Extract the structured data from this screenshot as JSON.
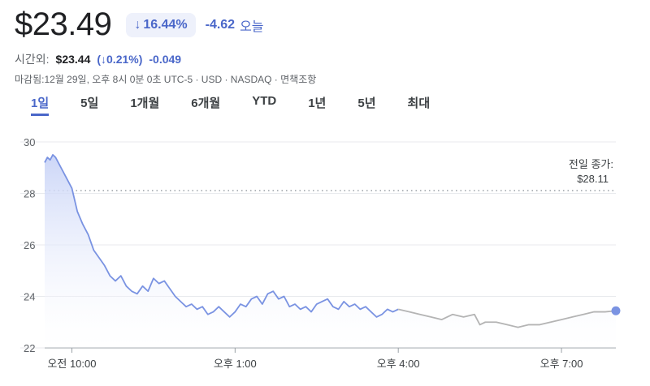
{
  "header": {
    "price": "$23.49",
    "change_pct": "16.44%",
    "change_abs": "-4.62",
    "change_label": "오늘"
  },
  "after_hours": {
    "label": "시간외:",
    "price": "$23.44",
    "pct": "(↓0.21%)",
    "abs": "-0.049"
  },
  "market_note": "마감됨:12월 29일, 오후 8시 0분 0초 UTC-5 · USD · NASDAQ · 면책조항",
  "tabs": [
    {
      "label": "1일",
      "active": true
    },
    {
      "label": "5일",
      "active": false
    },
    {
      "label": "1개월",
      "active": false
    },
    {
      "label": "6개월",
      "active": false
    },
    {
      "label": "YTD",
      "active": false
    },
    {
      "label": "1년",
      "active": false
    },
    {
      "label": "5년",
      "active": false
    },
    {
      "label": "최대",
      "active": false
    }
  ],
  "colors": {
    "regular": "#7a93e2",
    "afterhours": "#b4b4b4",
    "fill_top": "#c9d4f7",
    "accent": "#4a67c9"
  },
  "chart_data": {
    "type": "line",
    "ylim": [
      22,
      30
    ],
    "yticks": [
      22,
      24,
      26,
      28,
      30
    ],
    "xlim": [
      9.5,
      20.0
    ],
    "xticks": [
      {
        "x": 10,
        "label": "오전 10:00"
      },
      {
        "x": 13,
        "label": "오후 1:00"
      },
      {
        "x": 16,
        "label": "오후 4:00"
      },
      {
        "x": 19,
        "label": "오후 7:00"
      }
    ],
    "previous_close": {
      "label1": "전일 종가:",
      "label2": "$28.11",
      "value": 28.11
    },
    "series": [
      {
        "segment": "regular",
        "x": [
          9.5,
          9.55,
          9.6,
          9.65,
          9.7,
          9.75,
          9.8,
          9.9,
          10.0,
          10.1,
          10.2,
          10.3,
          10.4,
          10.5,
          10.6,
          10.7,
          10.8,
          10.9,
          11.0,
          11.1,
          11.2,
          11.3,
          11.4,
          11.5,
          11.6,
          11.7,
          11.8,
          11.9,
          12.0,
          12.1,
          12.2,
          12.3,
          12.4,
          12.5,
          12.6,
          12.7,
          12.8,
          12.9,
          13.0,
          13.1,
          13.2,
          13.3,
          13.4,
          13.5,
          13.6,
          13.7,
          13.8,
          13.9,
          14.0,
          14.1,
          14.2,
          14.3,
          14.4,
          14.5,
          14.6,
          14.7,
          14.8,
          14.9,
          15.0,
          15.1,
          15.2,
          15.3,
          15.4,
          15.5,
          15.6,
          15.7,
          15.8,
          15.9,
          16.0
        ],
        "y": [
          29.2,
          29.4,
          29.3,
          29.5,
          29.4,
          29.2,
          29.0,
          28.6,
          28.2,
          27.3,
          26.8,
          26.4,
          25.8,
          25.5,
          25.2,
          24.8,
          24.6,
          24.8,
          24.4,
          24.2,
          24.1,
          24.4,
          24.2,
          24.7,
          24.5,
          24.6,
          24.3,
          24.0,
          23.8,
          23.6,
          23.7,
          23.5,
          23.6,
          23.3,
          23.4,
          23.6,
          23.4,
          23.2,
          23.4,
          23.7,
          23.6,
          23.9,
          24.0,
          23.7,
          24.1,
          24.2,
          23.9,
          24.0,
          23.6,
          23.7,
          23.5,
          23.6,
          23.4,
          23.7,
          23.8,
          23.9,
          23.6,
          23.5,
          23.8,
          23.6,
          23.7,
          23.5,
          23.6,
          23.4,
          23.2,
          23.3,
          23.5,
          23.4,
          23.5
        ]
      },
      {
        "segment": "afterhours",
        "x": [
          16.0,
          16.2,
          16.4,
          16.6,
          16.8,
          17.0,
          17.2,
          17.4,
          17.5,
          17.6,
          17.8,
          18.0,
          18.2,
          18.4,
          18.6,
          18.8,
          19.0,
          19.2,
          19.4,
          19.6,
          19.8,
          20.0
        ],
        "y": [
          23.5,
          23.4,
          23.3,
          23.2,
          23.1,
          23.3,
          23.2,
          23.3,
          22.9,
          23.0,
          23.0,
          22.9,
          22.8,
          22.9,
          22.9,
          23.0,
          23.1,
          23.2,
          23.3,
          23.4,
          23.4,
          23.44
        ]
      }
    ]
  }
}
